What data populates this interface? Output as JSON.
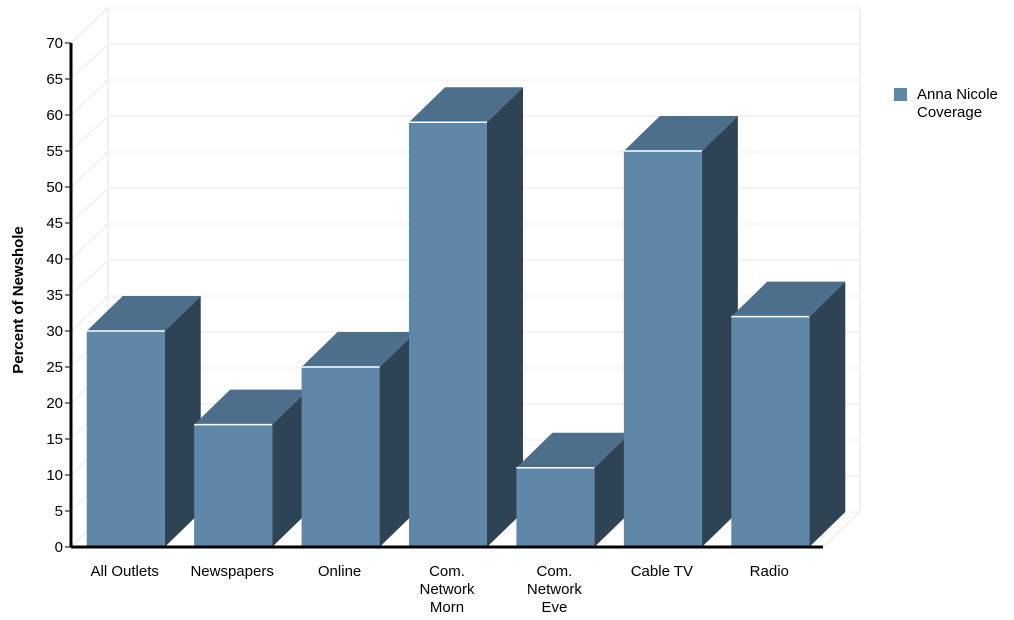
{
  "chart_data": {
    "type": "bar",
    "categories": [
      [
        "All Outlets"
      ],
      [
        "Newspapers"
      ],
      [
        "Online"
      ],
      [
        "Com.",
        "Network",
        "Morn"
      ],
      [
        "Com.",
        "Network",
        "Eve"
      ],
      [
        "Cable TV"
      ],
      [
        "Radio"
      ]
    ],
    "series": [
      {
        "name": "Anna Nicole Coverage",
        "legend_lines": [
          "Anna Nicole",
          "Coverage"
        ],
        "color": "#5f87a8",
        "values": [
          30,
          17,
          25,
          59,
          11,
          55,
          32
        ]
      }
    ],
    "title": "",
    "xlabel": "",
    "ylabel": "Percent of Newshole",
    "ylim": [
      0,
      70
    ],
    "yticks": [
      0,
      5,
      10,
      15,
      20,
      25,
      30,
      35,
      40,
      45,
      50,
      55,
      60,
      65,
      70
    ],
    "grid": true,
    "legend_position": "right",
    "style": "3d"
  }
}
